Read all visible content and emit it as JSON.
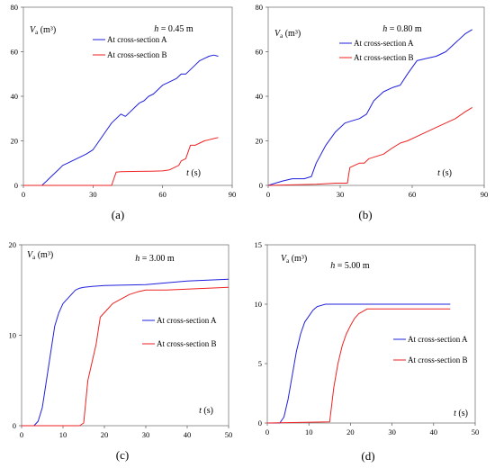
{
  "chart_data": [
    {
      "type": "line",
      "panel_label": "(a)",
      "ylabel": "V",
      "ylabel_sub": "a",
      "ylabel_unit": " (m³)",
      "param_italic": "h",
      "param_text": " = 0.45 m",
      "xlabel_italic": "t",
      "xlabel_unit": " (s)",
      "xlim": [
        0,
        90
      ],
      "ylim": [
        0,
        80
      ],
      "xticks": [
        0,
        30,
        60,
        90
      ],
      "yticks": [
        0,
        20,
        40,
        60,
        80
      ],
      "legend_position": "upper-middle",
      "series": [
        {
          "name": "At cross-section A",
          "color": "#1f1fdd",
          "x": [
            0,
            8,
            9,
            10,
            12,
            15,
            17,
            19,
            21,
            23,
            25,
            27,
            30,
            32,
            34,
            36,
            38,
            40,
            42,
            44,
            46,
            48,
            50,
            52,
            54,
            56,
            58,
            60,
            62,
            64,
            66,
            68,
            70,
            72,
            74,
            76,
            78,
            80,
            82,
            84
          ],
          "y": [
            0,
            0,
            1,
            2,
            4,
            7,
            9,
            10,
            11,
            12,
            13,
            14,
            16,
            19,
            22,
            25,
            28,
            30,
            32,
            31,
            33,
            35,
            37,
            38,
            40,
            41,
            43,
            45,
            46,
            47,
            48,
            50,
            50,
            52,
            54,
            56,
            57,
            58,
            58.5,
            58
          ]
        },
        {
          "name": "At cross-section B",
          "color": "#ee2222",
          "x": [
            0,
            38,
            40,
            42,
            50,
            55,
            60,
            63,
            65,
            67,
            68,
            70,
            72,
            74,
            76,
            78,
            80,
            82,
            84
          ],
          "y": [
            0,
            0,
            6,
            6.2,
            6.3,
            6.4,
            6.5,
            7,
            8,
            9,
            11,
            12,
            18,
            18,
            19,
            20,
            20.5,
            21,
            21.5
          ]
        }
      ]
    },
    {
      "type": "line",
      "panel_label": "(b)",
      "ylabel": "V",
      "ylabel_sub": "a",
      "ylabel_unit": " (m³)",
      "param_italic": "h",
      "param_text": " = 0.80 m",
      "xlabel_italic": "t",
      "xlabel_unit": " (s)",
      "xlim": [
        0,
        90
      ],
      "ylim": [
        0,
        80
      ],
      "xticks": [
        0,
        30,
        60,
        90
      ],
      "yticks": [
        0,
        20,
        40,
        60,
        80
      ],
      "legend_position": "upper-middle",
      "series": [
        {
          "name": "At cross-section A",
          "color": "#1f1fdd",
          "x": [
            0,
            3,
            6,
            10,
            15,
            18,
            20,
            24,
            28,
            32,
            35,
            38,
            41,
            44,
            48,
            52,
            55,
            58,
            62,
            66,
            70,
            74,
            78,
            82,
            85
          ],
          "y": [
            0,
            1,
            2,
            3,
            3,
            4,
            10,
            18,
            24,
            28,
            29,
            30,
            32,
            38,
            42,
            44,
            45,
            50,
            56,
            57,
            58,
            60,
            64,
            68,
            70
          ]
        },
        {
          "name": "At cross-section B",
          "color": "#ee2222",
          "x": [
            0,
            20,
            28,
            33,
            34,
            36,
            38,
            40,
            42,
            45,
            48,
            52,
            55,
            58,
            62,
            66,
            70,
            74,
            78,
            82,
            85
          ],
          "y": [
            0,
            0.5,
            1,
            1,
            8,
            9,
            10,
            10,
            12,
            13,
            14,
            17,
            19,
            20,
            22,
            24,
            26,
            28,
            30,
            33,
            35
          ]
        }
      ]
    },
    {
      "type": "line",
      "panel_label": "(c)",
      "ylabel": "V",
      "ylabel_sub": "a",
      "ylabel_unit": " (m³)",
      "param_italic": "h",
      "param_text": " = 3.00 m",
      "xlabel_italic": "t",
      "xlabel_unit": " (s)",
      "xlim": [
        0,
        50
      ],
      "ylim": [
        0,
        20
      ],
      "xticks": [
        0,
        10,
        20,
        30,
        40,
        50
      ],
      "yticks": [
        0,
        10,
        20
      ],
      "legend_position": "center-right",
      "series": [
        {
          "name": "At cross-section A",
          "color": "#1f1fdd",
          "x": [
            0,
            3,
            4,
            5,
            6,
            7,
            8,
            9,
            10,
            11,
            12,
            13,
            14,
            15,
            17,
            20,
            30,
            40,
            50
          ],
          "y": [
            0,
            0,
            0.5,
            2,
            5,
            8,
            11,
            12.5,
            13.5,
            14,
            14.5,
            15,
            15.2,
            15.3,
            15.4,
            15.5,
            15.6,
            16,
            16.2
          ]
        },
        {
          "name": "At cross-section B",
          "color": "#ee2222",
          "x": [
            0,
            14,
            15,
            16,
            17,
            18,
            19,
            20,
            21,
            22,
            24,
            26,
            28,
            30,
            35,
            40,
            45,
            50
          ],
          "y": [
            0,
            0,
            0.3,
            5,
            7,
            9,
            12,
            12.5,
            13,
            13.5,
            14,
            14.5,
            14.8,
            15,
            15,
            15.1,
            15.2,
            15.3
          ]
        }
      ]
    },
    {
      "type": "line",
      "panel_label": "(d)",
      "ylabel": "V",
      "ylabel_sub": "a",
      "ylabel_unit": " (m³)",
      "param_italic": "h",
      "param_text": " = 5.00 m",
      "xlabel_italic": "t",
      "xlabel_unit": " (s)",
      "xlim": [
        0,
        50
      ],
      "ylim": [
        0,
        15
      ],
      "xticks": [
        0,
        10,
        20,
        30,
        40,
        50
      ],
      "yticks": [
        0,
        5,
        10,
        15
      ],
      "legend_position": "center-right",
      "series": [
        {
          "name": "At cross-section A",
          "color": "#1f1fdd",
          "x": [
            0,
            3,
            4,
            5,
            6,
            7,
            8,
            9,
            10,
            11,
            12,
            13,
            14,
            20,
            30,
            44
          ],
          "y": [
            0,
            0,
            0.5,
            2,
            4,
            6,
            7.5,
            8.5,
            9,
            9.5,
            9.8,
            9.9,
            10,
            10,
            10,
            10
          ]
        },
        {
          "name": "At cross-section B",
          "color": "#ee2222",
          "x": [
            0,
            15,
            16,
            17,
            18,
            19,
            20,
            21,
            22,
            23,
            24,
            26,
            30,
            44
          ],
          "y": [
            0,
            0.1,
            3,
            5,
            6.5,
            7.5,
            8.2,
            8.8,
            9.2,
            9.4,
            9.6,
            9.6,
            9.6,
            9.6
          ]
        }
      ]
    }
  ]
}
